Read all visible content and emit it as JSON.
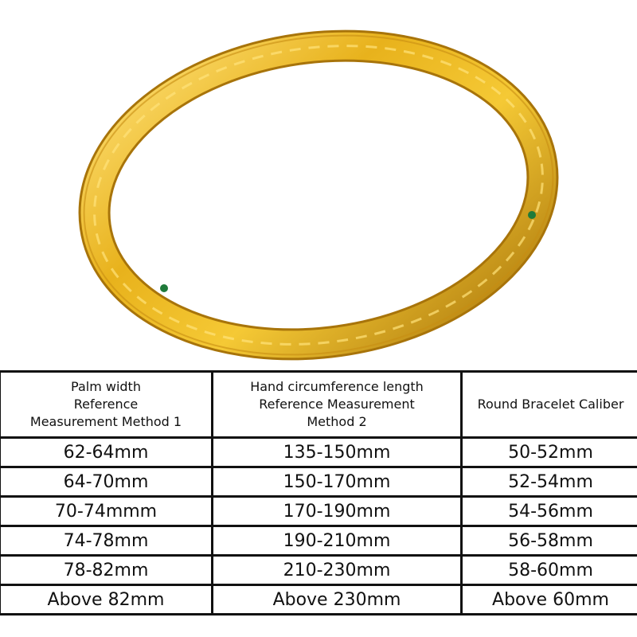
{
  "product_image": {
    "subject": "gold bangle",
    "colors": {
      "gold": "#e8b21c",
      "highlight": "#ffe27a",
      "shadow": "#a8740a",
      "gem": "#1f7a3a"
    }
  },
  "table": {
    "headers": [
      "Palm width\nReference\nMeasurement Method 1",
      "Hand circumference length\nReference Measurement\nMethod 2",
      "Round Bracelet Caliber"
    ],
    "rows": [
      [
        "62-64mm",
        "135-150mm",
        "50-52mm"
      ],
      [
        "64-70mm",
        "150-170mm",
        "52-54mm"
      ],
      [
        "70-74mmm",
        "170-190mm",
        "54-56mm"
      ],
      [
        "74-78mm",
        "190-210mm",
        "56-58mm"
      ],
      [
        "78-82mm",
        "210-230mm",
        "58-60mm"
      ],
      [
        "Above 82mm",
        "Above 230mm",
        "Above 60mm"
      ]
    ]
  }
}
